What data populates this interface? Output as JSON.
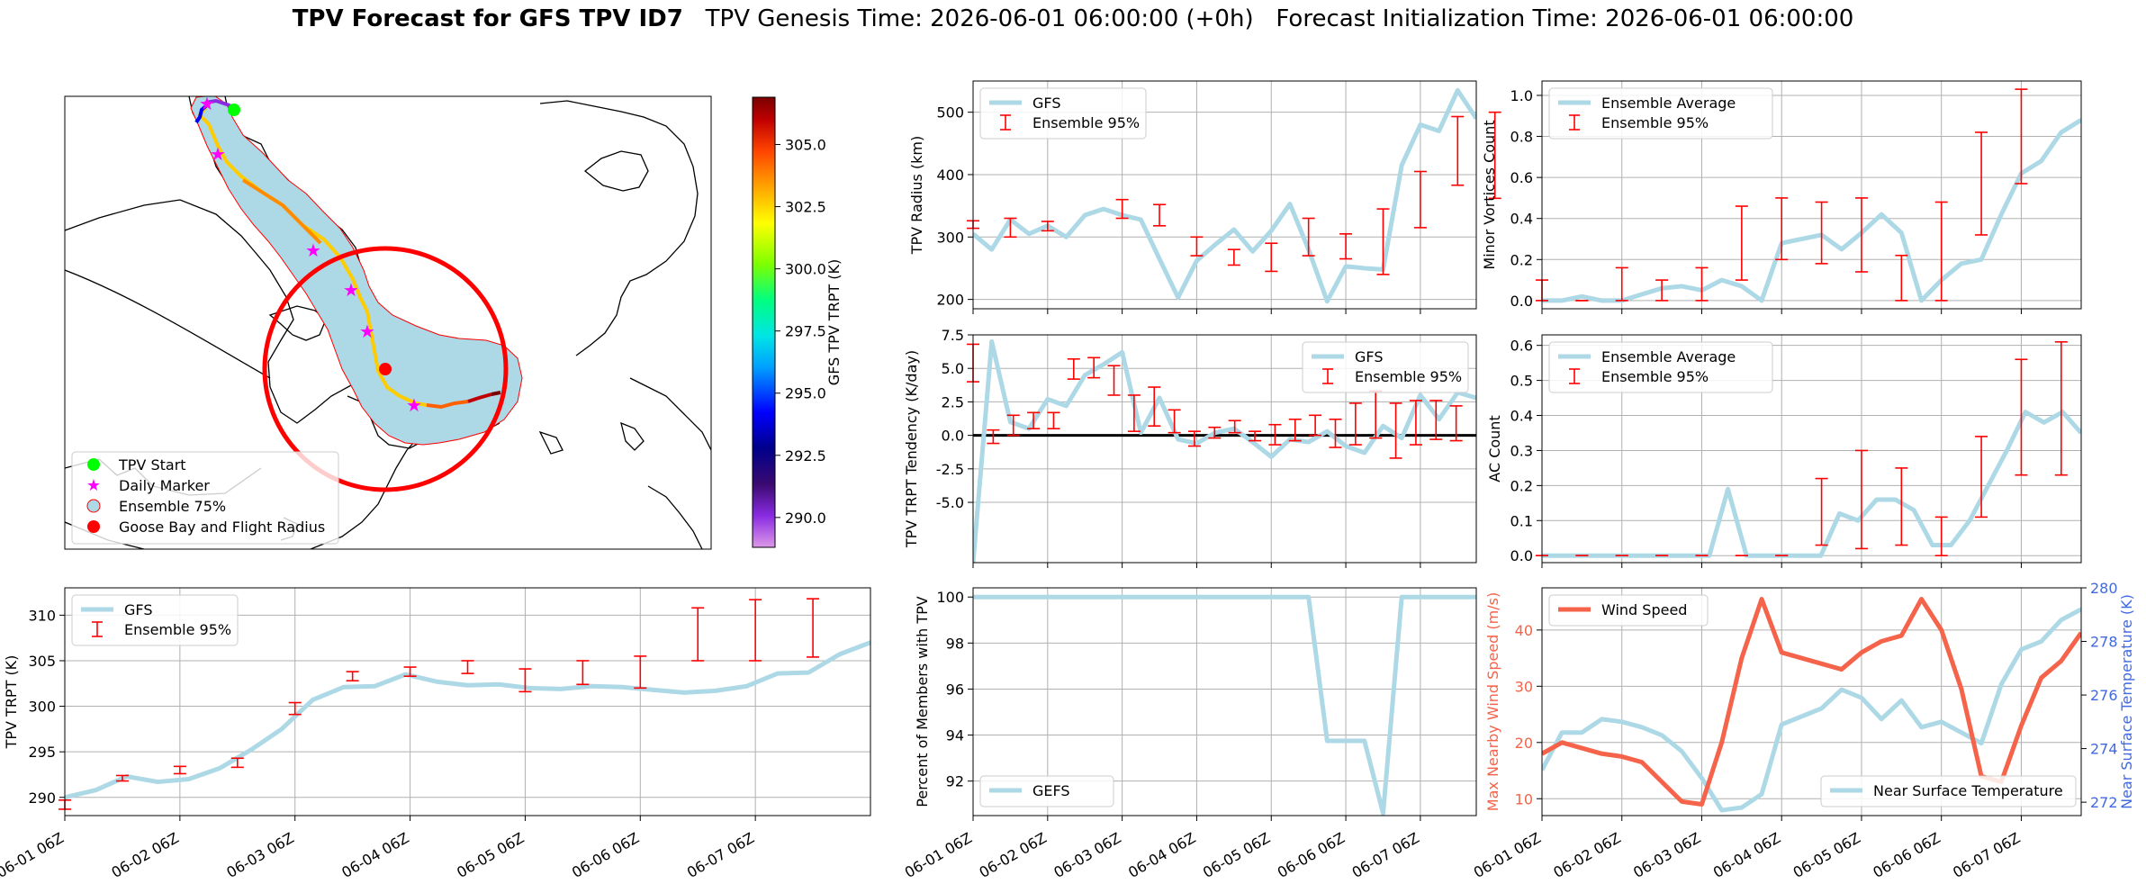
{
  "title": {
    "bold": "TPV Forecast for GFS TPV ID7",
    "genesis": "TPV Genesis Time: 2026-06-01 06:00:00 (+0h)",
    "init": "Forecast Initialization Time: 2026-06-01 06:00:00"
  },
  "colors": {
    "gfs_line": "#add8e6",
    "ensemble_err": "#ff0000",
    "wind": "#f4634a",
    "temp_axis": "#4169e1",
    "ocean_fill": "#add8e6",
    "start": "#00ff00",
    "daily": "#ff00ff",
    "goose_bay": "#ff0000"
  },
  "time_ticks": [
    "06-01 06Z",
    "06-02 06Z",
    "06-03 06Z",
    "06-04 06Z",
    "06-05 06Z",
    "06-06 06Z",
    "06-07 06Z"
  ],
  "chart_data": [
    {
      "id": "map",
      "type": "map",
      "legend": [
        "TPV Start",
        "Daily Marker",
        "Ensemble 75%",
        "Goose Bay and Flight Radius"
      ],
      "colorbar": {
        "label": "GFS TPV TRPT (K)",
        "ticks": [
          290.0,
          292.5,
          295.0,
          297.5,
          300.0,
          302.5,
          305.0
        ],
        "tick_labels": [
          "290.0",
          "292.5",
          "295.0",
          "297.5",
          "300.0",
          "302.5",
          "305.0"
        ],
        "range": [
          288.8,
          306.9
        ]
      },
      "legend_placement": "lower-left"
    },
    {
      "id": "radius",
      "type": "line",
      "ylabel": "TPV Radius (km)",
      "xlim": [
        0,
        27
      ],
      "ylim": [
        185,
        550
      ],
      "yticks": [
        200,
        300,
        400,
        500
      ],
      "legend": [
        "GFS",
        "Ensemble 95%"
      ],
      "legend_placement": "top-left",
      "x": [
        0,
        1,
        2,
        3,
        4,
        5,
        6,
        7,
        8,
        9,
        10,
        11,
        12,
        13,
        14,
        15,
        16,
        17,
        18,
        19,
        20,
        21,
        22,
        23,
        24,
        25,
        26,
        27
      ],
      "values": [
        305,
        280,
        328,
        305,
        318,
        300,
        335,
        345,
        335,
        328,
        265,
        203,
        262,
        288,
        312,
        277,
        310,
        353,
        280,
        197,
        253,
        250,
        248,
        415,
        480,
        470,
        535,
        490
      ],
      "errors": [
        [
          1,
          314,
          326
        ],
        [
          2,
          300,
          330
        ],
        [
          3,
          310,
          325
        ],
        [
          5,
          330,
          360
        ],
        [
          6,
          318,
          352
        ],
        [
          7,
          270,
          300
        ],
        [
          8,
          255,
          280
        ],
        [
          9,
          245,
          290
        ],
        [
          10,
          270,
          330
        ],
        [
          11,
          265,
          305
        ],
        [
          12,
          240,
          345
        ],
        [
          13,
          315,
          405
        ],
        [
          14,
          383,
          493
        ],
        [
          15,
          362,
          500
        ]
      ],
      "err_x_offset": 0
    },
    {
      "id": "minor",
      "type": "line",
      "ylabel": "Minor Vortices Count",
      "xlim": [
        0,
        27
      ],
      "ylim": [
        -0.04,
        1.07
      ],
      "yticks": [
        0.0,
        0.2,
        0.4,
        0.6,
        0.8,
        1.0
      ],
      "legend": [
        "Ensemble Average",
        "Ensemble 95%"
      ],
      "legend_placement": "top-left",
      "values": [
        0,
        0,
        0.02,
        0,
        0,
        0.03,
        0.06,
        0.07,
        0.05,
        0.1,
        0.07,
        0,
        0.28,
        0.3,
        0.32,
        0.25,
        0.33,
        0.42,
        0.33,
        0,
        0.1,
        0.18,
        0.2,
        0.42,
        0.62,
        0.68,
        0.82,
        0.88
      ],
      "errors": [
        [
          1,
          0.0,
          0.1
        ],
        [
          2,
          0.0,
          0.0
        ],
        [
          3,
          0.0,
          0.16
        ],
        [
          4,
          0.0,
          0.1
        ],
        [
          5,
          0.0,
          0.16
        ],
        [
          6,
          0.1,
          0.46
        ],
        [
          7,
          0.2,
          0.5
        ],
        [
          8,
          0.18,
          0.48
        ],
        [
          9,
          0.14,
          0.5
        ],
        [
          10,
          0.0,
          0.22
        ],
        [
          11,
          0.0,
          0.48
        ],
        [
          12,
          0.32,
          0.82
        ],
        [
          13,
          0.57,
          1.03
        ]
      ]
    },
    {
      "id": "tendency",
      "type": "line",
      "ylabel": "TPV TRPT Tendency (K/day)",
      "xlim": [
        0,
        27
      ],
      "ylim": [
        -9.5,
        7.5
      ],
      "yticks": [
        -5.0,
        -2.5,
        0.0,
        2.5,
        5.0,
        7.5
      ],
      "legend": [
        "GFS",
        "Ensemble 95%"
      ],
      "legend_placement": "top-right",
      "values": [
        -9.5,
        7.0,
        1.0,
        0.5,
        2.7,
        2.2,
        4.5,
        5.3,
        6.2,
        0.2,
        2.8,
        -0.3,
        -0.6,
        0.2,
        0.5,
        -0.5,
        -1.6,
        -0.3,
        -0.5,
        0.3,
        -0.8,
        -1.3,
        0.7,
        -0.2,
        3.0,
        1.2,
        3.2,
        2.8,
        2.2
      ],
      "errors": [
        [
          1,
          4.0,
          6.8
        ],
        [
          2,
          -0.6,
          0.4
        ],
        [
          3,
          0.0,
          1.5
        ],
        [
          4,
          0.5,
          1.7
        ],
        [
          5,
          0.5,
          1.7
        ],
        [
          6,
          4.2,
          5.7
        ],
        [
          7,
          4.3,
          5.8
        ],
        [
          8,
          3.0,
          5.2
        ],
        [
          9,
          0.3,
          3.0
        ],
        [
          10,
          0.7,
          3.6
        ],
        [
          11,
          0.2,
          1.9
        ],
        [
          12,
          -0.8,
          0.3
        ],
        [
          13,
          -0.2,
          0.6
        ],
        [
          14,
          0.2,
          1.1
        ],
        [
          15,
          -0.4,
          0.3
        ],
        [
          16,
          -0.7,
          0.8
        ],
        [
          17,
          -0.4,
          1.2
        ],
        [
          18,
          0.0,
          1.5
        ],
        [
          19,
          -0.9,
          1.2
        ],
        [
          20,
          -0.7,
          2.4
        ],
        [
          21,
          -0.2,
          3.3
        ],
        [
          22,
          -1.7,
          2.4
        ],
        [
          23,
          -0.7,
          2.6
        ],
        [
          24,
          -0.3,
          2.6
        ],
        [
          25,
          -0.4,
          2.2
        ]
      ]
    },
    {
      "id": "ac",
      "type": "line",
      "ylabel": "AC Count",
      "xlim": [
        0,
        27
      ],
      "ylim": [
        -0.02,
        0.63
      ],
      "yticks": [
        0.0,
        0.1,
        0.2,
        0.3,
        0.4,
        0.5,
        0.6
      ],
      "legend": [
        "Ensemble Average",
        "Ensemble 95%"
      ],
      "legend_placement": "top-left",
      "values": [
        0,
        0,
        0,
        0,
        0,
        0,
        0,
        0,
        0,
        0,
        0.19,
        0,
        0,
        0,
        0,
        0,
        0.12,
        0.1,
        0.16,
        0.16,
        0.13,
        0.03,
        0.03,
        0.1,
        0.2,
        0.3,
        0.41,
        0.38,
        0.41,
        0.35
      ],
      "errors": [
        [
          1,
          0,
          0
        ],
        [
          2,
          0,
          0
        ],
        [
          3,
          0,
          0
        ],
        [
          4,
          0,
          0
        ],
        [
          5,
          0,
          0
        ],
        [
          6,
          0,
          0
        ],
        [
          7,
          0,
          0
        ],
        [
          8,
          0.03,
          0.22
        ],
        [
          9,
          0.02,
          0.3
        ],
        [
          10,
          0.03,
          0.25
        ],
        [
          11,
          0.0,
          0.11
        ],
        [
          12,
          0.11,
          0.34
        ],
        [
          13,
          0.23,
          0.56
        ],
        [
          14,
          0.23,
          0.61
        ]
      ]
    },
    {
      "id": "trpt",
      "type": "line",
      "ylabel": "TPV TRPT (K)",
      "xlim": [
        0,
        28
      ],
      "ylim": [
        288,
        313
      ],
      "yticks": [
        290,
        295,
        300,
        305,
        310
      ],
      "legend": [
        "GFS",
        "Ensemble 95%"
      ],
      "legend_placement": "top-left",
      "values": [
        290,
        290.8,
        292.3,
        291.7,
        292,
        293.2,
        295.2,
        297.5,
        300.7,
        302.1,
        302.2,
        303.5,
        302.7,
        302.3,
        302.4,
        302,
        301.9,
        302.2,
        302.1,
        301.8,
        301.5,
        301.7,
        302.2,
        303.6,
        303.7,
        305.7,
        307
      ],
      "errors": [
        [
          0,
          288.7,
          289.7
        ],
        [
          2,
          291.8,
          292.4
        ],
        [
          4,
          292.6,
          293.4
        ],
        [
          6,
          293.3,
          294.3
        ],
        [
          8,
          299.1,
          300.4
        ],
        [
          10,
          302.8,
          303.8
        ],
        [
          12,
          303.3,
          304.3
        ],
        [
          14,
          303.6,
          305
        ],
        [
          16,
          301.6,
          304.1
        ],
        [
          18,
          302.4,
          305
        ],
        [
          20,
          302,
          305.5
        ],
        [
          22,
          305,
          310.8
        ],
        [
          24,
          305,
          311.7
        ],
        [
          26,
          305.4,
          311.8
        ]
      ]
    },
    {
      "id": "percent",
      "type": "line",
      "ylabel": "Percent of Members with TPV",
      "xlim": [
        0,
        27
      ],
      "ylim": [
        90.5,
        100.4
      ],
      "yticks": [
        92,
        94,
        96,
        98,
        100
      ],
      "legend": [
        "GEFS"
      ],
      "legend_placement": "bottom-left",
      "values": [
        100,
        100,
        100,
        100,
        100,
        100,
        100,
        100,
        100,
        100,
        100,
        100,
        100,
        100,
        100,
        100,
        100,
        100,
        100,
        93.75,
        93.75,
        93.75,
        90.6,
        100,
        100,
        100,
        100,
        100
      ]
    },
    {
      "id": "wind",
      "type": "line",
      "ylabel": "Max Nearby Wind Speed (m/s)",
      "ylabel2": "Near Surface Temperature (K)",
      "xlim": [
        0,
        27
      ],
      "ylim": [
        7,
        47.5
      ],
      "yticks": [
        10,
        20,
        30,
        40
      ],
      "y2lim": [
        271.5,
        280
      ],
      "y2ticks": [
        272,
        274,
        276,
        278,
        280
      ],
      "legend": [
        "Wind Speed"
      ],
      "legend2": [
        "Near Surface Temperature"
      ],
      "legend_placement": "top-left",
      "legend2_placement": "bottom-right",
      "wind": [
        18,
        20,
        19,
        18,
        17.5,
        16.5,
        13,
        9.5,
        9,
        20,
        35,
        45.5,
        36,
        35,
        34,
        33,
        36,
        38,
        39,
        45.5,
        40,
        29.5,
        14,
        13,
        23,
        31.5,
        34.5,
        39.5
      ],
      "temp": [
        273.2,
        274.6,
        274.6,
        275.1,
        275,
        274.8,
        274.5,
        273.9,
        272.9,
        271.7,
        271.8,
        272.3,
        274.9,
        275.2,
        275.5,
        276.2,
        275.9,
        275.1,
        275.8,
        274.8,
        275,
        274.6,
        274.2,
        276.4,
        277.7,
        278,
        278.8,
        279.2
      ]
    }
  ]
}
